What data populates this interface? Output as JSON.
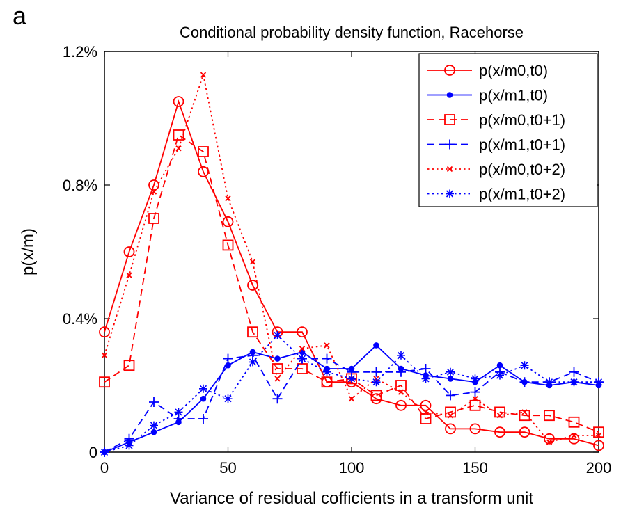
{
  "panel_label": "a",
  "chart_data": {
    "type": "line",
    "title": "Conditional probability density function, Racehorse",
    "xlabel": "Variance of residual cofficients in a transform unit",
    "ylabel": "p(x/m)",
    "xlim": [
      0,
      200
    ],
    "ylim": [
      0,
      0.012
    ],
    "xticks": [
      0,
      50,
      100,
      150,
      200
    ],
    "xtick_labels": [
      "0",
      "50",
      "100",
      "150",
      "200"
    ],
    "yticks": [
      0,
      0.004,
      0.008,
      0.012
    ],
    "ytick_labels": [
      "0",
      "0.4%",
      "0.8%",
      "1.2%"
    ],
    "grid": false,
    "legend_position": "top-right",
    "x": [
      0,
      10,
      20,
      30,
      40,
      50,
      60,
      70,
      80,
      90,
      100,
      110,
      120,
      130,
      140,
      150,
      160,
      170,
      180,
      190,
      200
    ],
    "series": [
      {
        "name": "p(x/m0,t0)",
        "color": "#ff0000",
        "line": "solid",
        "marker": "circle",
        "values": [
          0.0036,
          0.006,
          0.008,
          0.0105,
          0.0084,
          0.0069,
          0.005,
          0.0036,
          0.0036,
          0.0021,
          0.0021,
          0.0016,
          0.0014,
          0.0014,
          0.0007,
          0.0007,
          0.0006,
          0.0006,
          0.0004,
          0.0004,
          0.0002
        ]
      },
      {
        "name": "p(x/m1,t0)",
        "color": "#0000ff",
        "line": "solid",
        "marker": "dot",
        "values": [
          0.0,
          0.0003,
          0.0006,
          0.0009,
          0.0016,
          0.0026,
          0.003,
          0.0028,
          0.003,
          0.0025,
          0.0025,
          0.0032,
          0.0025,
          0.0023,
          0.0022,
          0.0021,
          0.0026,
          0.0021,
          0.002,
          0.0021,
          0.002
        ]
      },
      {
        "name": "p(x/m0,t0+1)",
        "color": "#ff0000",
        "line": "dashed",
        "marker": "square",
        "values": [
          0.0021,
          0.0026,
          0.007,
          0.0095,
          0.009,
          0.0062,
          0.0036,
          0.0025,
          0.0025,
          0.0021,
          0.0022,
          0.0017,
          0.002,
          0.001,
          0.0012,
          0.0014,
          0.0012,
          0.0011,
          0.0011,
          0.0009,
          0.0006
        ]
      },
      {
        "name": "p(x/m1,t0+1)",
        "color": "#0000ff",
        "line": "dashed",
        "marker": "plus",
        "values": [
          0.0,
          0.0004,
          0.0015,
          0.001,
          0.001,
          0.0028,
          0.0029,
          0.0016,
          0.0028,
          0.0028,
          0.0024,
          0.0024,
          0.0024,
          0.0025,
          0.0017,
          0.0018,
          0.0024,
          0.0021,
          0.0021,
          0.0024,
          0.0021
        ]
      },
      {
        "name": "p(x/m0,t0+2)",
        "color": "#ff0000",
        "line": "dotted",
        "marker": "x",
        "values": [
          0.0029,
          0.0053,
          0.0078,
          0.0091,
          0.0113,
          0.0076,
          0.0057,
          0.0022,
          0.0031,
          0.0032,
          0.0016,
          0.0022,
          0.0018,
          0.0012,
          0.0011,
          0.0016,
          0.0011,
          0.0012,
          0.0003,
          0.0005,
          0.0005
        ]
      },
      {
        "name": "p(x/m1,t0+2)",
        "color": "#0000ff",
        "line": "dotted",
        "marker": "star",
        "values": [
          0.0,
          0.0002,
          0.0008,
          0.0012,
          0.0019,
          0.0016,
          0.0027,
          0.0035,
          0.0028,
          0.0024,
          0.0022,
          0.0021,
          0.0029,
          0.0022,
          0.0024,
          0.0022,
          0.0023,
          0.0026,
          0.0021,
          0.0021,
          0.0021
        ]
      }
    ]
  }
}
